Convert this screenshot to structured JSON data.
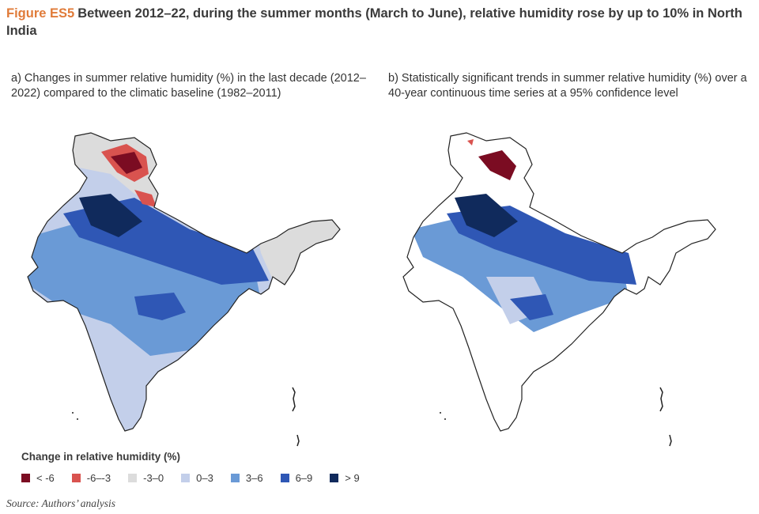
{
  "figure": {
    "label": "Figure ES5",
    "title": "Between 2012–22, during the summer months (March to June), relative humidity rose by up to 10% in North India"
  },
  "panel_a": {
    "title": "a) Changes in summer relative humidity (%) in the last decade (2012–2022) compared to the climatic baseline (1982–2011)"
  },
  "panel_b": {
    "title": "b) Statistically significant trends in summer relative humidity (%) over a 40-year continuous time series at a 95% confidence level"
  },
  "legend": {
    "title": "Change in relative humidity (%)",
    "items": [
      {
        "label": "< -6",
        "color": "#7b0c22"
      },
      {
        "label": "-6–-3",
        "color": "#d9534f"
      },
      {
        "label": "-3–0",
        "color": "#dcdcdc"
      },
      {
        "label": "0–3",
        "color": "#c3cfea"
      },
      {
        "label": "3–6",
        "color": "#6a9ad6"
      },
      {
        "label": "6–9",
        "color": "#2f57b5"
      },
      {
        "label": "> 9",
        "color": "#102a5c"
      }
    ]
  },
  "source": "Source: Authors’ analysis"
}
